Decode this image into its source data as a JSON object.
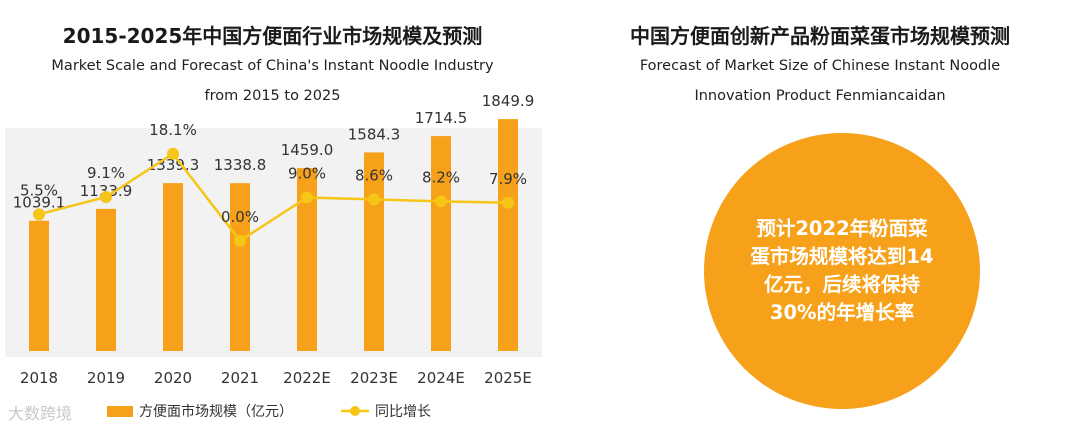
{
  "left": {
    "title_cn": "2015-2025年中国方便面行业市场规模及预测",
    "title_en_line1": "Market Scale and Forecast of China's Instant Noodle Industry",
    "title_en_line2": "from 2015 to 2025"
  },
  "right": {
    "title_cn": "中国方便面创新产品粉面菜蛋市场规模预测",
    "title_en_line1": "Forecast of Market Size of Chinese Instant Noodle",
    "title_en_line2": "Innovation Product Fenmiancaidan",
    "circle_text": "预计2022年粉面菜蛋市场规模将达到14亿元，后续将保持30%的年增长率"
  },
  "watermark": "大数跨境",
  "colors": {
    "bar": "#f7a11a",
    "line": "#f5c518",
    "plot_bg": "#f2f2f2",
    "circle": "#f7a11a"
  },
  "chart_data": {
    "type": "bar",
    "title": "2015-2025年中国方便面行业市场规模及预测",
    "categories": [
      "2018",
      "2019",
      "2020",
      "2021",
      "2022E",
      "2023E",
      "2024E",
      "2025E"
    ],
    "series": [
      {
        "name": "方便面市场规模（亿元）",
        "type": "bar",
        "values": [
          1039.1,
          1133.9,
          1339.3,
          1338.8,
          1459.0,
          1584.3,
          1714.5,
          1849.9
        ],
        "labels": [
          "1039.1",
          "1133.9",
          "1339.3",
          "1338.8",
          "1459.0",
          "1584.3",
          "1714.5",
          "1849.9"
        ]
      },
      {
        "name": "同比增长",
        "type": "line",
        "unit": "%",
        "values": [
          5.5,
          9.1,
          18.1,
          0.0,
          9.0,
          8.6,
          8.2,
          7.9
        ],
        "labels": [
          "5.5%",
          "9.1%",
          "18.1%",
          "0.0%",
          "9.0%",
          "8.6%",
          "8.2%",
          "7.9%"
        ]
      }
    ],
    "bar_axis_range": [
      0,
      2800
    ],
    "line_axis_range": [
      -30,
      22
    ],
    "legend": [
      "方便面市场规模（亿元）",
      "同比增长"
    ],
    "legend_position": "bottom"
  }
}
